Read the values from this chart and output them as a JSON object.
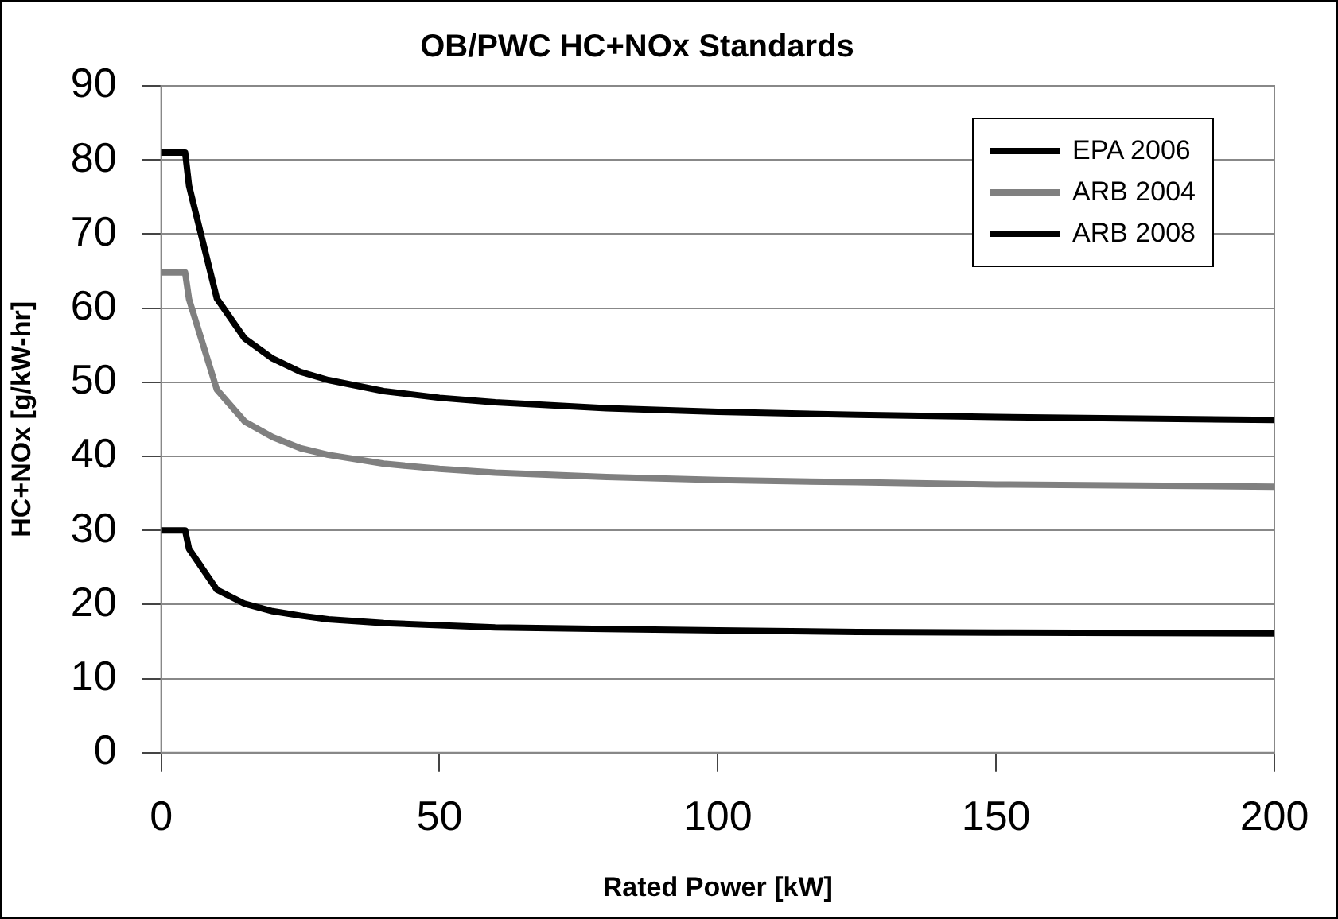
{
  "chart_data": {
    "type": "line",
    "title": "OB/PWC HC+NOx Standards",
    "xlabel": "Rated Power [kW]",
    "ylabel": "HC+NOx [g/kW-hr]",
    "x": [
      0,
      4.3,
      5,
      10,
      15,
      20,
      25,
      30,
      40,
      50,
      60,
      80,
      100,
      125,
      150,
      200
    ],
    "series": [
      {
        "name": "EPA 2006",
        "color": "#000000",
        "values": [
          81,
          81,
          76.5,
          61.3,
          55.9,
          53.2,
          51.4,
          50.3,
          48.8,
          47.9,
          47.3,
          46.5,
          46.0,
          45.6,
          45.3,
          44.9
        ]
      },
      {
        "name": "ARB 2004",
        "color": "#808080",
        "values": [
          64.8,
          64.8,
          61.2,
          49.0,
          44.7,
          42.6,
          41.1,
          40.2,
          39.0,
          38.3,
          37.8,
          37.2,
          36.8,
          36.5,
          36.2,
          35.9
        ]
      },
      {
        "name": "ARB 2008",
        "color": "#000000",
        "values": [
          30,
          30,
          27.5,
          22.0,
          20.1,
          19.1,
          18.5,
          18.0,
          17.5,
          17.2,
          16.9,
          16.7,
          16.5,
          16.3,
          16.2,
          16.1
        ]
      }
    ],
    "xlim": [
      0,
      200
    ],
    "xticks": [
      0,
      50,
      100,
      150,
      200
    ],
    "ylim": [
      0,
      90
    ],
    "yticks": [
      0,
      10,
      20,
      30,
      40,
      50,
      60,
      70,
      80,
      90
    ],
    "grid": "y",
    "legend": "top right",
    "marker": "none",
    "line_style": "solid"
  }
}
